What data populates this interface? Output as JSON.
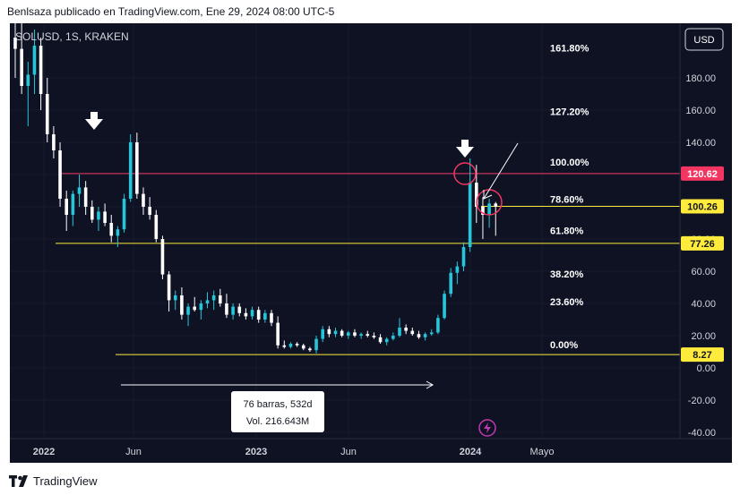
{
  "header": {
    "text": "Benlsaza publicado en TradingView.com, Ene 29, 2024 08:00 UTC-5"
  },
  "symbol": {
    "text": "SOLUSD, 1S, KRAKEN"
  },
  "currency_button": {
    "label": "USD"
  },
  "footer": {
    "brand": "TradingView"
  },
  "measure": {
    "bars": "76 barras, 532d",
    "volume": "Vol. 216.643M"
  },
  "colors": {
    "background": "#0e1223",
    "up": "#26c6da",
    "down": "#ffffff",
    "red_level": "#f23661",
    "yellow_level": "#ffeb3b"
  },
  "chart_data": {
    "type": "candlestick",
    "title": "SOLUSD, 1S, KRAKEN",
    "xlabel": "",
    "ylabel": "",
    "ylim": [
      -40,
      240
    ],
    "y_ticks": [
      "180.00",
      "160.00",
      "140.00",
      "120.00",
      "100.00",
      "80.00",
      "60.00",
      "40.00",
      "20.00",
      "0.00",
      "-20.00",
      "-40.00"
    ],
    "x_ticks": [
      "2022",
      "Jun",
      "2023",
      "Jun",
      "2024",
      "Mayo"
    ],
    "price_labels": [
      {
        "label": "120.62",
        "value": 120.62,
        "color": "#f23661"
      },
      {
        "label": "100.26",
        "value": 100.26,
        "color": "#ffeb3b"
      },
      {
        "label": "77.26",
        "value": 77.26,
        "color": "#ffeb3b"
      },
      {
        "label": "8.27",
        "value": 8.27,
        "color": "#ffeb3b"
      }
    ],
    "fib_levels": [
      {
        "label": "161.80%",
        "value": 198.6
      },
      {
        "label": "127.20%",
        "value": 159.2
      },
      {
        "label": "100.00%",
        "value": 127.7
      },
      {
        "label": "78.60%",
        "value": 104.7
      },
      {
        "label": "61.80%",
        "value": 85.3
      },
      {
        "label": "38.20%",
        "value": 58.3
      },
      {
        "label": "23.60%",
        "value": 41.1
      },
      {
        "label": "0.00%",
        "value": 14.4
      }
    ],
    "candles": [
      {
        "o": 205,
        "h": 235,
        "l": 180,
        "c": 198
      },
      {
        "o": 198,
        "h": 220,
        "l": 170,
        "c": 175
      },
      {
        "o": 175,
        "h": 190,
        "l": 150,
        "c": 182
      },
      {
        "o": 182,
        "h": 210,
        "l": 170,
        "c": 200
      },
      {
        "o": 200,
        "h": 205,
        "l": 160,
        "c": 170
      },
      {
        "o": 170,
        "h": 180,
        "l": 140,
        "c": 145
      },
      {
        "o": 145,
        "h": 150,
        "l": 130,
        "c": 135
      },
      {
        "o": 135,
        "h": 140,
        "l": 100,
        "c": 105
      },
      {
        "o": 105,
        "h": 110,
        "l": 85,
        "c": 95
      },
      {
        "o": 95,
        "h": 110,
        "l": 88,
        "c": 108
      },
      {
        "o": 108,
        "h": 120,
        "l": 100,
        "c": 112
      },
      {
        "o": 112,
        "h": 116,
        "l": 95,
        "c": 100
      },
      {
        "o": 100,
        "h": 104,
        "l": 90,
        "c": 92
      },
      {
        "o": 92,
        "h": 100,
        "l": 85,
        "c": 97
      },
      {
        "o": 97,
        "h": 102,
        "l": 88,
        "c": 90
      },
      {
        "o": 90,
        "h": 95,
        "l": 78,
        "c": 82
      },
      {
        "o": 82,
        "h": 88,
        "l": 75,
        "c": 86
      },
      {
        "o": 86,
        "h": 108,
        "l": 84,
        "c": 105
      },
      {
        "o": 105,
        "h": 145,
        "l": 103,
        "c": 140
      },
      {
        "o": 140,
        "h": 146,
        "l": 105,
        "c": 108
      },
      {
        "o": 108,
        "h": 112,
        "l": 95,
        "c": 100
      },
      {
        "o": 100,
        "h": 106,
        "l": 92,
        "c": 95
      },
      {
        "o": 95,
        "h": 98,
        "l": 78,
        "c": 80
      },
      {
        "o": 80,
        "h": 82,
        "l": 55,
        "c": 58
      },
      {
        "o": 58,
        "h": 60,
        "l": 35,
        "c": 42
      },
      {
        "o": 42,
        "h": 48,
        "l": 36,
        "c": 45
      },
      {
        "o": 45,
        "h": 50,
        "l": 30,
        "c": 33
      },
      {
        "o": 33,
        "h": 40,
        "l": 26,
        "c": 38
      },
      {
        "o": 38,
        "h": 44,
        "l": 35,
        "c": 36
      },
      {
        "o": 36,
        "h": 42,
        "l": 30,
        "c": 40
      },
      {
        "o": 40,
        "h": 47,
        "l": 37,
        "c": 42
      },
      {
        "o": 42,
        "h": 48,
        "l": 36,
        "c": 45
      },
      {
        "o": 45,
        "h": 49,
        "l": 38,
        "c": 40
      },
      {
        "o": 40,
        "h": 46,
        "l": 31,
        "c": 33
      },
      {
        "o": 33,
        "h": 40,
        "l": 30,
        "c": 38
      },
      {
        "o": 38,
        "h": 40,
        "l": 32,
        "c": 34
      },
      {
        "o": 34,
        "h": 37,
        "l": 30,
        "c": 32
      },
      {
        "o": 32,
        "h": 38,
        "l": 30,
        "c": 36
      },
      {
        "o": 36,
        "h": 38,
        "l": 28,
        "c": 30
      },
      {
        "o": 30,
        "h": 36,
        "l": 28,
        "c": 34
      },
      {
        "o": 34,
        "h": 36,
        "l": 26,
        "c": 28
      },
      {
        "o": 28,
        "h": 32,
        "l": 12,
        "c": 14
      },
      {
        "o": 14,
        "h": 17,
        "l": 12,
        "c": 13
      },
      {
        "o": 13,
        "h": 16,
        "l": 12,
        "c": 15
      },
      {
        "o": 15,
        "h": 16,
        "l": 13,
        "c": 14
      },
      {
        "o": 14,
        "h": 15,
        "l": 11,
        "c": 12
      },
      {
        "o": 12,
        "h": 13,
        "l": 10,
        "c": 11
      },
      {
        "o": 11,
        "h": 20,
        "l": 9,
        "c": 18
      },
      {
        "o": 18,
        "h": 26,
        "l": 16,
        "c": 24
      },
      {
        "o": 24,
        "h": 26,
        "l": 19,
        "c": 21
      },
      {
        "o": 21,
        "h": 25,
        "l": 19,
        "c": 23
      },
      {
        "o": 23,
        "h": 24,
        "l": 19,
        "c": 20
      },
      {
        "o": 20,
        "h": 23,
        "l": 18,
        "c": 22
      },
      {
        "o": 22,
        "h": 24,
        "l": 19,
        "c": 20
      },
      {
        "o": 20,
        "h": 22,
        "l": 18,
        "c": 21
      },
      {
        "o": 21,
        "h": 23,
        "l": 19,
        "c": 20
      },
      {
        "o": 20,
        "h": 22,
        "l": 18,
        "c": 19
      },
      {
        "o": 19,
        "h": 21,
        "l": 15,
        "c": 16
      },
      {
        "o": 16,
        "h": 19,
        "l": 14,
        "c": 18
      },
      {
        "o": 18,
        "h": 22,
        "l": 17,
        "c": 20
      },
      {
        "o": 20,
        "h": 31,
        "l": 19,
        "c": 25
      },
      {
        "o": 25,
        "h": 27,
        "l": 21,
        "c": 23
      },
      {
        "o": 23,
        "h": 25,
        "l": 20,
        "c": 21
      },
      {
        "o": 21,
        "h": 23,
        "l": 18,
        "c": 19
      },
      {
        "o": 19,
        "h": 22,
        "l": 17,
        "c": 21
      },
      {
        "o": 21,
        "h": 24,
        "l": 20,
        "c": 22
      },
      {
        "o": 22,
        "h": 33,
        "l": 21,
        "c": 31
      },
      {
        "o": 31,
        "h": 48,
        "l": 30,
        "c": 46
      },
      {
        "o": 46,
        "h": 62,
        "l": 44,
        "c": 59
      },
      {
        "o": 59,
        "h": 66,
        "l": 52,
        "c": 63
      },
      {
        "o": 63,
        "h": 78,
        "l": 60,
        "c": 75
      },
      {
        "o": 75,
        "h": 130,
        "l": 72,
        "c": 115
      },
      {
        "o": 115,
        "h": 126,
        "l": 90,
        "c": 100
      },
      {
        "o": 100,
        "h": 106,
        "l": 80,
        "c": 95
      },
      {
        "o": 95,
        "h": 105,
        "l": 87,
        "c": 102
      },
      {
        "o": 102,
        "h": 103,
        "l": 82,
        "c": 100
      }
    ]
  }
}
